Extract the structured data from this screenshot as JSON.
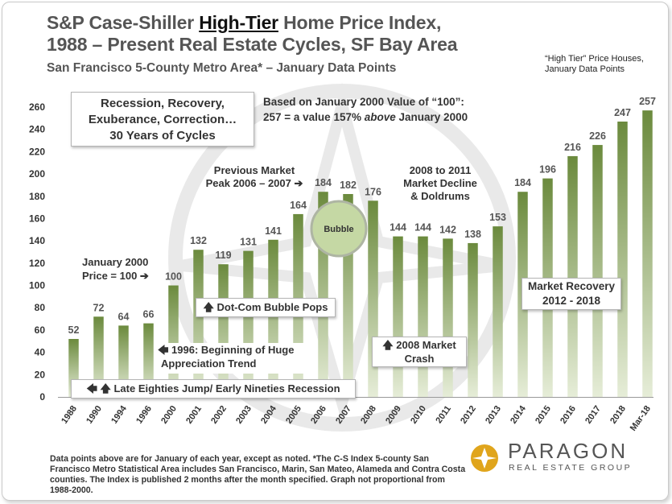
{
  "header": {
    "title_line1_pre": "S&P Case-Shiller ",
    "title_line1_hl": "High-Tier",
    "title_line1_post": " Home Price Index,",
    "title_line2": "1988 – Present Real Estate Cycles, SF Bay Area",
    "subtitle": "San Francisco 5-County Metro Area* – January Data Points",
    "corner_note_line1": "“High Tier” Price Houses,",
    "corner_note_line2": "January Data Points"
  },
  "annotations": {
    "cycles_box": [
      "Recession, Recovery,",
      "Exuberance, Correction…",
      "30 Years of Cycles"
    ],
    "base_note": [
      "Based on January 2000 Value of “100”:",
      "257 = a value 157%",
      "above",
      "January 2000"
    ],
    "prev_peak": [
      "Previous Market",
      "Peak 2006 – 2007 ➔"
    ],
    "decline": [
      "2008 to 2011",
      "Market Decline",
      "& Doldrums"
    ],
    "bubble": "Bubble",
    "jan2000": [
      "January 2000",
      "Price = 100 ➔"
    ],
    "dotcom": "🡅 Dot-Com Bubble Pops",
    "huge_trend": [
      "🡄 1996: Beginning of Huge",
      "Appreciation Trend"
    ],
    "crash": [
      "🡅 2008 Market",
      "Crash"
    ],
    "recovery": [
      "Market Recovery",
      "2012 - 2018"
    ],
    "late_eighties": "🡄 🡅 Late Eighties Jump/ Early Nineties Recession"
  },
  "footnote": "Data points above are for January of each year, except as noted. *The C-S Index 5-county San Francisco Metro Statistical Area includes San Francisco, Marin, San Mateo, Alameda and Contra Costa counties. The Index is published 2 months after the month specified. Graph not proportional from 1988-2000.",
  "logo": {
    "name": "PARAGON",
    "tagline": "REAL ESTATE GROUP"
  },
  "colors": {
    "bar_top": "#6b8a3d",
    "bar_bottom": "#e6edd8",
    "bubble": "#c5d8a4"
  },
  "chart_data": {
    "type": "bar",
    "categories": [
      "1988",
      "1990",
      "1994",
      "1996",
      "2000",
      "2001",
      "2002",
      "2003",
      "2004",
      "2005",
      "2006",
      "2007",
      "2008",
      "2009",
      "2010",
      "2011",
      "2012",
      "2013",
      "2014",
      "2015",
      "2016",
      "2017",
      "2018",
      "Mar-18"
    ],
    "values": [
      52,
      72,
      64,
      66,
      100,
      132,
      119,
      131,
      141,
      164,
      184,
      182,
      176,
      144,
      144,
      142,
      138,
      153,
      184,
      196,
      216,
      226,
      247,
      257
    ],
    "ylim": [
      0,
      260
    ],
    "yticks": [
      0,
      20,
      40,
      60,
      80,
      100,
      120,
      140,
      160,
      180,
      200,
      220,
      240,
      260
    ],
    "grid": false,
    "title": "S&P Case-Shiller High-Tier Home Price Index, 1988 – Present Real Estate Cycles, SF Bay Area"
  }
}
